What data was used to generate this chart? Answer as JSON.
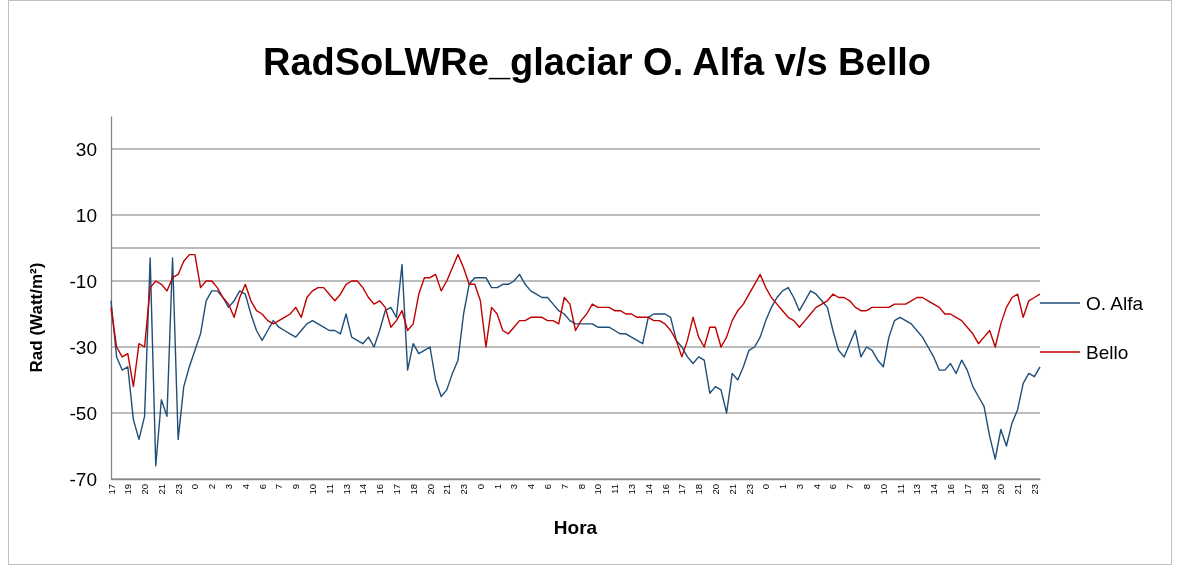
{
  "chart_data": {
    "type": "line",
    "title": "RadSoLWRe_glaciar O. Alfa v/s Bello",
    "xlabel": "Hora",
    "ylabel": "Rad (Watt/m²)",
    "ylim": [
      -70,
      40
    ],
    "yticks": [
      30,
      10,
      -10,
      -30,
      -50,
      -70
    ],
    "categories": [
      "17",
      null,
      null,
      "19",
      null,
      null,
      "20",
      null,
      null,
      "21",
      null,
      null,
      "23",
      null,
      null,
      "0",
      null,
      null,
      "2",
      null,
      null,
      "3",
      null,
      null,
      "4",
      null,
      null,
      "6",
      null,
      null,
      "7",
      null,
      null,
      "9",
      null,
      null,
      "10",
      null,
      null,
      "11",
      null,
      null,
      "13",
      null,
      null,
      "14",
      null,
      null,
      "16",
      null,
      null,
      "17",
      null,
      null,
      "18",
      null,
      null,
      "20",
      null,
      null,
      "21",
      null,
      null,
      "23",
      null,
      null,
      "0",
      null,
      null,
      "1",
      null,
      null,
      "3",
      null,
      null,
      "4",
      null,
      null,
      "6",
      null,
      null,
      "7",
      null,
      null,
      "8",
      null,
      null,
      "10",
      null,
      null,
      "11",
      null,
      null,
      "13",
      null,
      null,
      "14",
      null,
      null,
      "16",
      null,
      null,
      "17",
      null,
      null,
      "18",
      null,
      null,
      "20",
      null,
      null,
      "21",
      null,
      null,
      "23",
      null,
      null,
      "0",
      null,
      null,
      "1",
      null,
      null,
      "3",
      null,
      null,
      "4",
      null,
      null,
      "6",
      null,
      null,
      "7",
      null,
      null,
      "8",
      null,
      null,
      "10",
      null,
      null,
      "11",
      null,
      null,
      "13",
      null,
      null,
      "14",
      null,
      null,
      "16",
      null,
      null,
      "17",
      null,
      null,
      "18",
      null,
      null,
      "20",
      null,
      null,
      "21",
      null,
      null,
      "23",
      null
    ],
    "grid": "y",
    "legend": "right",
    "marker": "none",
    "line_style": "solid",
    "ref_lines": [
      {
        "axis": "y",
        "value": 0,
        "color": "#a6a6a6"
      }
    ],
    "series": [
      {
        "name": "O. Alfa",
        "color": "#1f4e79",
        "values": [
          -16,
          -33,
          -37,
          -36,
          -52,
          -58,
          -51,
          -3,
          -66,
          -46,
          -51,
          -3,
          -58,
          -42,
          -36,
          -31,
          -26,
          -16,
          -13,
          -13,
          -15,
          -18,
          -16,
          -13,
          -14,
          -20,
          -25,
          -28,
          -25,
          -22,
          -24,
          -25,
          -26,
          -27,
          -25,
          -23,
          -22,
          -23,
          -24,
          -25,
          -25,
          -26,
          -20,
          -27,
          -28,
          -29,
          -27,
          -30,
          -25,
          -19,
          -18,
          -21,
          -5,
          -37,
          -29,
          -32,
          -31,
          -30,
          -40,
          -45,
          -43,
          -38,
          -34,
          -20,
          -11,
          -9,
          -9,
          -9,
          -12,
          -12,
          -11,
          -11,
          -10,
          -8,
          -11,
          -13,
          -14,
          -15,
          -15,
          -17,
          -19,
          -20,
          -22,
          -23,
          -23,
          -23,
          -23,
          -24,
          -24,
          -24,
          -25,
          -26,
          -26,
          -27,
          -28,
          -29,
          -21,
          -20,
          -20,
          -20,
          -21,
          -28,
          -30,
          -33,
          -35,
          -33,
          -34,
          -44,
          -42,
          -43,
          -50,
          -38,
          -40,
          -36,
          -31,
          -30,
          -27,
          -22,
          -18,
          -15,
          -13,
          -12,
          -15,
          -19,
          -16,
          -13,
          -14,
          -16,
          -18,
          -25,
          -31,
          -33,
          -29,
          -25,
          -33,
          -30,
          -31,
          -34,
          -36,
          -27,
          -22,
          -21,
          -22,
          -23,
          -25,
          -27,
          -30,
          -33,
          -37,
          -37,
          -35,
          -38,
          -34,
          -37,
          -42,
          -45,
          -48,
          -57,
          -64,
          -55,
          -60,
          -53,
          -49,
          -41,
          -38,
          -39,
          -36
        ]
      },
      {
        "name": "Bello",
        "color": "#c00000",
        "values": [
          -18,
          -30,
          -33,
          -32,
          -42,
          -29,
          -30,
          -12,
          -10,
          -11,
          -13,
          -9,
          -8,
          -4,
          -2,
          -2,
          -12,
          -10,
          -10,
          -12,
          -15,
          -17,
          -21,
          -15,
          -11,
          -16,
          -19,
          -20,
          -22,
          -23,
          -22,
          -21,
          -20,
          -18,
          -21,
          -15,
          -13,
          -12,
          -12,
          -14,
          -16,
          -14,
          -11,
          -10,
          -10,
          -12,
          -15,
          -17,
          -16,
          -18,
          -24,
          -22,
          -19,
          -25,
          -23,
          -14,
          -9,
          -9,
          -8,
          -13,
          -10,
          -6,
          -2,
          -6,
          -11,
          -11,
          -16,
          -30,
          -18,
          -20,
          -25,
          -26,
          -24,
          -22,
          -22,
          -21,
          -21,
          -21,
          -22,
          -22,
          -23,
          -15,
          -17,
          -25,
          -22,
          -20,
          -17,
          -18,
          -18,
          -18,
          -19,
          -19,
          -20,
          -20,
          -21,
          -21,
          -21,
          -22,
          -22,
          -23,
          -25,
          -28,
          -33,
          -28,
          -21,
          -27,
          -30,
          -24,
          -24,
          -30,
          -27,
          -22,
          -19,
          -17,
          -14,
          -11,
          -8,
          -12,
          -15,
          -17,
          -19,
          -21,
          -22,
          -24,
          -22,
          -20,
          -18,
          -17,
          -16,
          -14,
          -15,
          -15,
          -16,
          -18,
          -19,
          -19,
          -18,
          -18,
          -18,
          -18,
          -17,
          -17,
          -17,
          -16,
          -15,
          -15,
          -16,
          -17,
          -18,
          -20,
          -20,
          -21,
          -22,
          -24,
          -26,
          -29,
          -27,
          -25,
          -30,
          -23,
          -18,
          -15,
          -14,
          -21,
          -16,
          -15,
          -14
        ]
      }
    ]
  }
}
